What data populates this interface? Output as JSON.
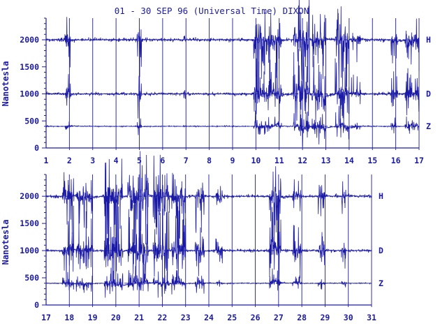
{
  "page": {
    "background": "#ffffff",
    "ink": "#1a1aa6"
  },
  "chart_data": {
    "type": "line",
    "title": "01 - 30 SEP 96 (Universal Time) DIXON",
    "ylabel": "Nanotesla",
    "yticks": [
      "0",
      "500",
      "1000",
      "1500",
      "2000"
    ],
    "panels": [
      {
        "xlim": [
          1,
          17
        ],
        "ylim": [
          0,
          2400
        ],
        "xticks": [
          "1",
          "2",
          "3",
          "4",
          "5",
          "6",
          "7",
          "8",
          "9",
          "10",
          "11",
          "12",
          "13",
          "14",
          "15",
          "16",
          "17"
        ],
        "series": [
          {
            "name": "H",
            "baseline": 2000
          },
          {
            "name": "D",
            "baseline": 1000
          },
          {
            "name": "Z",
            "baseline": 400
          }
        ]
      },
      {
        "xlim": [
          17,
          31
        ],
        "ylim": [
          0,
          2400
        ],
        "xticks": [
          "17",
          "18",
          "19",
          "20",
          "21",
          "22",
          "23",
          "24",
          "25",
          "26",
          "27",
          "28",
          "29",
          "30",
          "31"
        ],
        "series": [
          {
            "name": "H",
            "baseline": 2000
          },
          {
            "name": "D",
            "baseline": 1000
          },
          {
            "name": "Z",
            "baseline": 400
          }
        ]
      }
    ]
  }
}
